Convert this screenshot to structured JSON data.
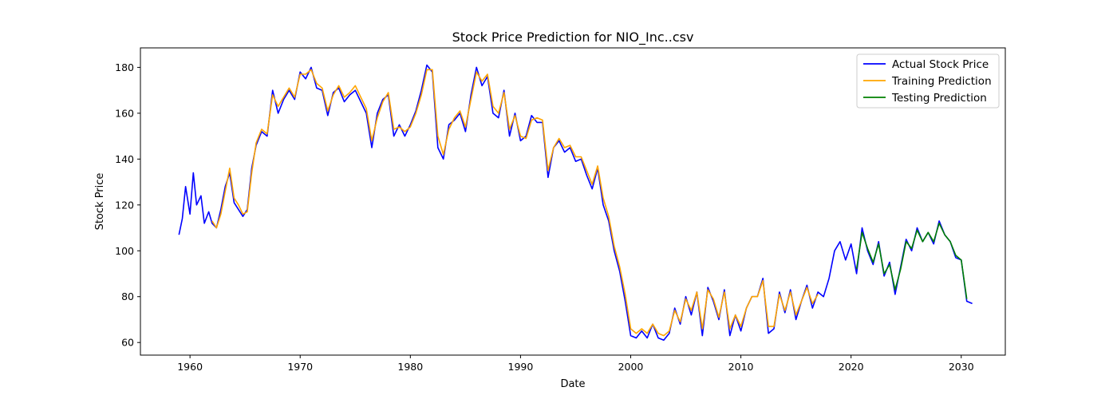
{
  "chart_data": {
    "type": "line",
    "title": "Stock Price Prediction for NIO_Inc..csv",
    "xlabel": "Date",
    "ylabel": "Stock Price",
    "xlim": [
      1955.5,
      2034.0
    ],
    "ylim": [
      54.5,
      188.5
    ],
    "x_ticks": [
      1960,
      1970,
      1980,
      1990,
      2000,
      2010,
      2020,
      2030
    ],
    "y_ticks": [
      60,
      80,
      100,
      120,
      140,
      160,
      180
    ],
    "grid": false,
    "legend_position": "top-right",
    "series": [
      {
        "name": "Actual Stock Price",
        "color": "#0000ff",
        "x": [
          1959.0,
          1959.3,
          1959.6,
          1960.0,
          1960.3,
          1960.6,
          1961.0,
          1961.3,
          1961.7,
          1962.0,
          1962.4,
          1962.8,
          1963.2,
          1963.6,
          1964.0,
          1964.4,
          1964.8,
          1965.2,
          1965.6,
          1966.0,
          1966.5,
          1967.0,
          1967.5,
          1968.0,
          1968.5,
          1969.0,
          1969.5,
          1970.0,
          1970.5,
          1971.0,
          1971.5,
          1972.0,
          1972.5,
          1973.0,
          1973.5,
          1974.0,
          1974.5,
          1975.0,
          1975.5,
          1976.0,
          1976.5,
          1977.0,
          1977.5,
          1978.0,
          1978.5,
          1979.0,
          1979.5,
          1980.0,
          1980.5,
          1981.0,
          1981.5,
          1982.0,
          1982.5,
          1983.0,
          1983.5,
          1984.0,
          1984.5,
          1985.0,
          1985.5,
          1986.0,
          1986.5,
          1987.0,
          1987.5,
          1988.0,
          1988.5,
          1989.0,
          1989.5,
          1990.0,
          1990.5,
          1991.0,
          1991.5,
          1992.0,
          1992.5,
          1993.0,
          1993.5,
          1994.0,
          1994.5,
          1995.0,
          1995.5,
          1996.0,
          1996.5,
          1997.0,
          1997.5,
          1998.0,
          1998.5,
          1999.0,
          1999.5,
          2000.0,
          2000.5,
          2001.0,
          2001.5,
          2002.0,
          2002.5,
          2003.0,
          2003.5,
          2004.0,
          2004.5,
          2005.0,
          2005.5,
          2006.0,
          2006.5,
          2007.0,
          2007.5,
          2008.0,
          2008.5,
          2009.0,
          2009.5,
          2010.0,
          2010.5,
          2011.0,
          2011.5,
          2012.0,
          2012.5,
          2013.0,
          2013.5,
          2014.0,
          2014.5,
          2015.0,
          2015.5,
          2016.0,
          2016.5,
          2017.0,
          2017.5,
          2018.0,
          2018.5,
          2019.0,
          2019.5,
          2020.0,
          2020.5,
          2021.0,
          2021.5,
          2022.0,
          2022.5,
          2023.0,
          2023.5,
          2024.0,
          2024.5,
          2025.0,
          2025.5,
          2026.0,
          2026.5,
          2027.0,
          2027.5,
          2028.0,
          2028.5,
          2029.0,
          2029.5,
          2030.0,
          2030.5,
          2031.0
        ],
        "values": [
          107,
          114,
          128,
          116,
          134,
          120,
          124,
          112,
          117,
          112,
          110,
          118,
          128,
          134,
          121,
          118,
          115,
          118,
          136,
          146,
          152,
          150,
          170,
          160,
          166,
          170,
          166,
          178,
          175,
          180,
          171,
          170,
          159,
          169,
          171,
          165,
          168,
          170,
          165,
          160,
          145,
          160,
          166,
          168,
          150,
          155,
          150,
          155,
          161,
          170,
          181,
          178,
          145,
          140,
          155,
          157,
          160,
          152,
          168,
          180,
          172,
          176,
          160,
          158,
          170,
          150,
          160,
          148,
          150,
          159,
          156,
          156,
          132,
          145,
          148,
          143,
          145,
          139,
          140,
          133,
          127,
          136,
          120,
          113,
          100,
          91,
          78,
          63,
          62,
          65,
          62,
          68,
          62,
          61,
          64,
          75,
          68,
          80,
          72,
          82,
          63,
          84,
          78,
          70,
          83,
          63,
          72,
          65,
          75,
          80,
          80,
          88,
          64,
          66,
          82,
          73,
          83,
          70,
          78,
          85,
          75,
          82,
          80,
          88,
          100,
          104,
          96,
          103,
          90,
          110,
          100,
          94,
          104,
          89,
          95,
          81,
          93,
          105,
          100,
          110,
          104,
          108,
          103,
          113,
          107,
          104,
          97,
          96,
          78,
          77
        ]
      },
      {
        "name": "Training Prediction",
        "color": "#ffa500",
        "x": [
          1962.0,
          1962.4,
          1962.8,
          1963.2,
          1963.6,
          1964.0,
          1964.4,
          1964.8,
          1965.2,
          1965.6,
          1966.0,
          1966.5,
          1967.0,
          1967.5,
          1968.0,
          1968.5,
          1969.0,
          1969.5,
          1970.0,
          1970.5,
          1971.0,
          1971.5,
          1972.0,
          1972.5,
          1973.0,
          1973.5,
          1974.0,
          1974.5,
          1975.0,
          1975.5,
          1976.0,
          1976.5,
          1977.0,
          1977.5,
          1978.0,
          1978.5,
          1979.0,
          1979.5,
          1980.0,
          1980.5,
          1981.0,
          1981.5,
          1982.0,
          1982.5,
          1983.0,
          1983.5,
          1984.0,
          1984.5,
          1985.0,
          1985.5,
          1986.0,
          1986.5,
          1987.0,
          1987.5,
          1988.0,
          1988.5,
          1989.0,
          1989.5,
          1990.0,
          1990.5,
          1991.0,
          1991.5,
          1992.0,
          1992.5,
          1993.0,
          1993.5,
          1994.0,
          1994.5,
          1995.0,
          1995.5,
          1996.0,
          1996.5,
          1997.0,
          1997.5,
          1998.0,
          1998.5,
          1999.0,
          1999.5,
          2000.0,
          2000.5,
          2001.0,
          2001.5,
          2002.0,
          2002.5,
          2003.0,
          2003.5,
          2004.0,
          2004.5,
          2005.0,
          2005.5,
          2006.0,
          2006.5,
          2007.0,
          2007.5,
          2008.0,
          2008.5,
          2009.0,
          2009.5,
          2010.0,
          2010.5,
          2011.0,
          2011.5,
          2012.0,
          2012.5,
          2013.0,
          2013.5,
          2014.0,
          2014.5,
          2015.0,
          2015.5,
          2016.0,
          2016.5,
          2017.0
        ],
        "values": [
          113,
          110,
          116,
          126,
          136,
          123,
          120,
          116,
          117,
          134,
          147,
          153,
          151,
          168,
          163,
          167,
          171,
          167,
          177,
          177,
          179,
          173,
          171,
          161,
          168,
          172,
          167,
          169,
          172,
          167,
          162,
          148,
          158,
          165,
          169,
          153,
          154,
          152,
          154,
          160,
          168,
          179,
          179,
          150,
          142,
          153,
          158,
          161,
          154,
          166,
          178,
          174,
          177,
          163,
          160,
          169,
          153,
          159,
          150,
          149,
          157,
          158,
          157,
          135,
          145,
          149,
          145,
          146,
          141,
          141,
          135,
          129,
          137,
          123,
          115,
          102,
          93,
          81,
          66,
          64,
          66,
          64,
          68,
          64,
          63,
          65,
          74,
          69,
          79,
          74,
          82,
          66,
          83,
          79,
          71,
          82,
          66,
          72,
          67,
          75,
          80,
          80,
          87,
          67,
          67,
          81,
          74,
          82,
          72,
          78,
          84,
          77,
          81
        ]
      },
      {
        "name": "Testing Prediction",
        "color": "#008000",
        "x": [
          2020.5,
          2021.0,
          2021.5,
          2022.0,
          2022.5,
          2023.0,
          2023.5,
          2024.0,
          2024.5,
          2025.0,
          2025.5,
          2026.0,
          2026.5,
          2027.0,
          2027.5,
          2028.0,
          2028.5,
          2029.0,
          2029.5,
          2030.0,
          2030.5
        ],
        "values": [
          92,
          108,
          101,
          95,
          103,
          90,
          94,
          83,
          92,
          104,
          101,
          109,
          104,
          108,
          104,
          112,
          107,
          104,
          98,
          96,
          79
        ]
      }
    ]
  }
}
